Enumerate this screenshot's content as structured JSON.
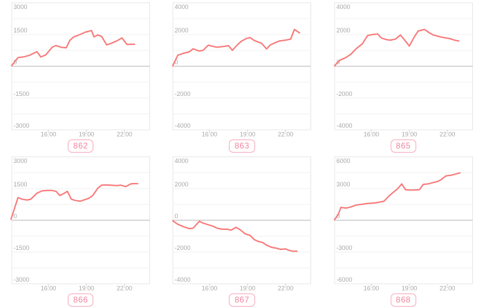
{
  "style": {
    "page_background": "#ffffff",
    "line_color": "#f87979",
    "panel_border_color": "#e7e7e7",
    "grid_color": "#f2f2f2",
    "zero_line_color": "#c4c4c4",
    "tick_color": "#cccccc",
    "axis_text_color": "#a8a8a8",
    "badge_text_color": "#f2859f",
    "badge_border_color": "#f7abbd"
  },
  "chart_data": [
    {
      "id_label": "862",
      "type": "line",
      "legend": "none",
      "grid": "horizontal",
      "x_axis": {
        "tick_labels": [
          "16:00",
          "19:00",
          "22:00"
        ],
        "tick_hours": [
          16,
          19,
          22
        ],
        "range_hours": [
          13.0,
          23.3
        ]
      },
      "y_axis": {
        "max": 3000,
        "min": -3000,
        "tick_labels": [
          "3000",
          "1500",
          "0",
          "-1500",
          "-3000"
        ]
      },
      "series": [
        {
          "name": "862",
          "points": [
            [
              13.1,
              30
            ],
            [
              13.6,
              410
            ],
            [
              14.1,
              450
            ],
            [
              14.5,
              520
            ],
            [
              15.1,
              690
            ],
            [
              15.4,
              440
            ],
            [
              15.8,
              540
            ],
            [
              16.3,
              900
            ],
            [
              16.6,
              980
            ],
            [
              17.0,
              900
            ],
            [
              17.4,
              870
            ],
            [
              17.7,
              1230
            ],
            [
              18.0,
              1390
            ],
            [
              18.5,
              1500
            ],
            [
              18.9,
              1610
            ],
            [
              19.4,
              1690
            ],
            [
              19.6,
              1390
            ],
            [
              19.9,
              1480
            ],
            [
              20.2,
              1410
            ],
            [
              20.6,
              1010
            ],
            [
              20.9,
              1070
            ],
            [
              21.4,
              1200
            ],
            [
              21.8,
              1340
            ],
            [
              22.2,
              1030
            ],
            [
              22.5,
              1040
            ],
            [
              22.8,
              1040
            ]
          ]
        }
      ]
    },
    {
      "id_label": "863",
      "type": "line",
      "legend": "none",
      "grid": "horizontal",
      "x_axis": {
        "tick_labels": [
          "16:00",
          "19:00",
          "22:00"
        ],
        "tick_hours": [
          16,
          19,
          22
        ],
        "range_hours": [
          13.0,
          23.3
        ]
      },
      "y_axis": {
        "max": 4000,
        "min": -4000,
        "tick_labels": [
          "4000",
          "2000",
          "0",
          "-2000",
          "-4000"
        ]
      },
      "series": [
        {
          "name": "863",
          "points": [
            [
              13.1,
              30
            ],
            [
              13.5,
              700
            ],
            [
              13.9,
              810
            ],
            [
              14.4,
              910
            ],
            [
              14.7,
              1100
            ],
            [
              15.2,
              960
            ],
            [
              15.5,
              1010
            ],
            [
              15.9,
              1330
            ],
            [
              16.3,
              1250
            ],
            [
              16.6,
              1200
            ],
            [
              17.1,
              1250
            ],
            [
              17.5,
              1300
            ],
            [
              17.8,
              1010
            ],
            [
              18.2,
              1350
            ],
            [
              18.5,
              1570
            ],
            [
              18.9,
              1750
            ],
            [
              19.2,
              1810
            ],
            [
              19.5,
              1640
            ],
            [
              19.8,
              1540
            ],
            [
              20.1,
              1450
            ],
            [
              20.5,
              1090
            ],
            [
              20.8,
              1350
            ],
            [
              21.2,
              1490
            ],
            [
              21.5,
              1590
            ],
            [
              22.0,
              1650
            ],
            [
              22.4,
              1710
            ],
            [
              22.7,
              2320
            ],
            [
              23.1,
              2100
            ]
          ]
        }
      ]
    },
    {
      "id_label": "865",
      "type": "line",
      "legend": "none",
      "grid": "horizontal",
      "x_axis": {
        "tick_labels": [
          "16:00",
          "19:00",
          "22:00"
        ],
        "tick_hours": [
          16,
          19,
          22
        ],
        "range_hours": [
          13.0,
          23.3
        ]
      },
      "y_axis": {
        "max": 4000,
        "min": -4000,
        "tick_labels": [
          "4000",
          "2000",
          "0",
          "-2000",
          "-4000"
        ]
      },
      "series": [
        {
          "name": "865",
          "points": [
            [
              13.1,
              30
            ],
            [
              13.5,
              380
            ],
            [
              14.0,
              550
            ],
            [
              14.4,
              770
            ],
            [
              14.8,
              1100
            ],
            [
              15.3,
              1420
            ],
            [
              15.7,
              1930
            ],
            [
              16.1,
              2000
            ],
            [
              16.5,
              2030
            ],
            [
              16.8,
              1780
            ],
            [
              17.2,
              1680
            ],
            [
              17.5,
              1650
            ],
            [
              17.9,
              1710
            ],
            [
              18.3,
              1970
            ],
            [
              18.6,
              1680
            ],
            [
              19.0,
              1280
            ],
            [
              19.4,
              1860
            ],
            [
              19.7,
              2220
            ],
            [
              20.2,
              2320
            ],
            [
              20.5,
              2150
            ],
            [
              20.9,
              1970
            ],
            [
              21.4,
              1860
            ],
            [
              21.7,
              1810
            ],
            [
              22.2,
              1740
            ],
            [
              22.6,
              1640
            ],
            [
              22.9,
              1590
            ]
          ]
        }
      ]
    },
    {
      "id_label": "866",
      "type": "line",
      "legend": "none",
      "grid": "horizontal",
      "x_axis": {
        "tick_labels": [
          "16:00",
          "19:00",
          "22:00"
        ],
        "tick_hours": [
          16,
          19,
          22
        ],
        "range_hours": [
          13.0,
          23.3
        ]
      },
      "y_axis": {
        "max": 3000,
        "min": -3000,
        "tick_labels": [
          "3000",
          "1500",
          "0",
          "-1500",
          "-3000"
        ]
      },
      "series": [
        {
          "name": "866",
          "points": [
            [
              13.05,
              50
            ],
            [
              13.6,
              1070
            ],
            [
              13.9,
              1000
            ],
            [
              14.3,
              960
            ],
            [
              14.6,
              990
            ],
            [
              15.1,
              1280
            ],
            [
              15.5,
              1390
            ],
            [
              15.9,
              1410
            ],
            [
              16.3,
              1410
            ],
            [
              16.6,
              1370
            ],
            [
              16.9,
              1170
            ],
            [
              17.2,
              1260
            ],
            [
              17.5,
              1370
            ],
            [
              17.8,
              1000
            ],
            [
              18.1,
              940
            ],
            [
              18.5,
              900
            ],
            [
              18.8,
              960
            ],
            [
              19.2,
              1040
            ],
            [
              19.5,
              1170
            ],
            [
              19.9,
              1520
            ],
            [
              20.2,
              1660
            ],
            [
              20.5,
              1670
            ],
            [
              20.9,
              1660
            ],
            [
              21.4,
              1640
            ],
            [
              21.7,
              1660
            ],
            [
              22.1,
              1590
            ],
            [
              22.5,
              1720
            ],
            [
              22.8,
              1730
            ],
            [
              23.05,
              1730
            ]
          ]
        }
      ]
    },
    {
      "id_label": "867",
      "type": "line",
      "legend": "none",
      "grid": "horizontal",
      "x_axis": {
        "tick_labels": [
          "16:00",
          "19:00",
          "22:00"
        ],
        "tick_hours": [
          16,
          19,
          22
        ],
        "range_hours": [
          13.0,
          23.3
        ]
      },
      "y_axis": {
        "max": 4000,
        "min": -4000,
        "tick_labels": [
          "4000",
          "2000",
          "0",
          "-2000",
          "-4000"
        ]
      },
      "series": [
        {
          "name": "867",
          "points": [
            [
              13.1,
              -30
            ],
            [
              13.5,
              -250
            ],
            [
              14.0,
              -420
            ],
            [
              14.4,
              -520
            ],
            [
              14.7,
              -500
            ],
            [
              15.2,
              -60
            ],
            [
              15.5,
              -180
            ],
            [
              15.9,
              -280
            ],
            [
              16.3,
              -380
            ],
            [
              16.6,
              -500
            ],
            [
              17.0,
              -560
            ],
            [
              17.4,
              -560
            ],
            [
              17.7,
              -620
            ],
            [
              18.1,
              -440
            ],
            [
              18.5,
              -640
            ],
            [
              18.8,
              -850
            ],
            [
              19.2,
              -950
            ],
            [
              19.5,
              -1200
            ],
            [
              19.8,
              -1320
            ],
            [
              20.2,
              -1400
            ],
            [
              20.5,
              -1570
            ],
            [
              20.9,
              -1700
            ],
            [
              21.3,
              -1760
            ],
            [
              21.6,
              -1830
            ],
            [
              22.0,
              -1800
            ],
            [
              22.3,
              -1900
            ],
            [
              22.6,
              -1950
            ],
            [
              22.9,
              -1950
            ]
          ]
        }
      ]
    },
    {
      "id_label": "868",
      "type": "line",
      "legend": "none",
      "grid": "horizontal",
      "x_axis": {
        "tick_labels": [
          "16:00",
          "19:00",
          "22:00"
        ],
        "tick_hours": [
          16,
          19,
          22
        ],
        "range_hours": [
          13.0,
          23.3
        ]
      },
      "y_axis": {
        "max": 6000,
        "min": -6000,
        "tick_labels": [
          "6000",
          "3000",
          "0",
          "-3000",
          "-6000"
        ]
      },
      "series": [
        {
          "name": "868",
          "points": [
            [
              13.1,
              50
            ],
            [
              13.4,
              570
            ],
            [
              13.6,
              1220
            ],
            [
              14.0,
              1150
            ],
            [
              14.4,
              1260
            ],
            [
              14.8,
              1440
            ],
            [
              15.3,
              1520
            ],
            [
              15.7,
              1590
            ],
            [
              16.2,
              1630
            ],
            [
              16.6,
              1700
            ],
            [
              17.0,
              1800
            ],
            [
              17.4,
              2300
            ],
            [
              17.7,
              2610
            ],
            [
              18.1,
              3000
            ],
            [
              18.4,
              3440
            ],
            [
              18.7,
              2890
            ],
            [
              19.1,
              2850
            ],
            [
              19.5,
              2870
            ],
            [
              19.8,
              2890
            ],
            [
              20.1,
              3390
            ],
            [
              20.5,
              3440
            ],
            [
              20.8,
              3540
            ],
            [
              21.2,
              3650
            ],
            [
              21.5,
              3830
            ],
            [
              21.9,
              4200
            ],
            [
              22.3,
              4260
            ],
            [
              22.6,
              4350
            ],
            [
              23.0,
              4480
            ]
          ]
        }
      ]
    }
  ]
}
